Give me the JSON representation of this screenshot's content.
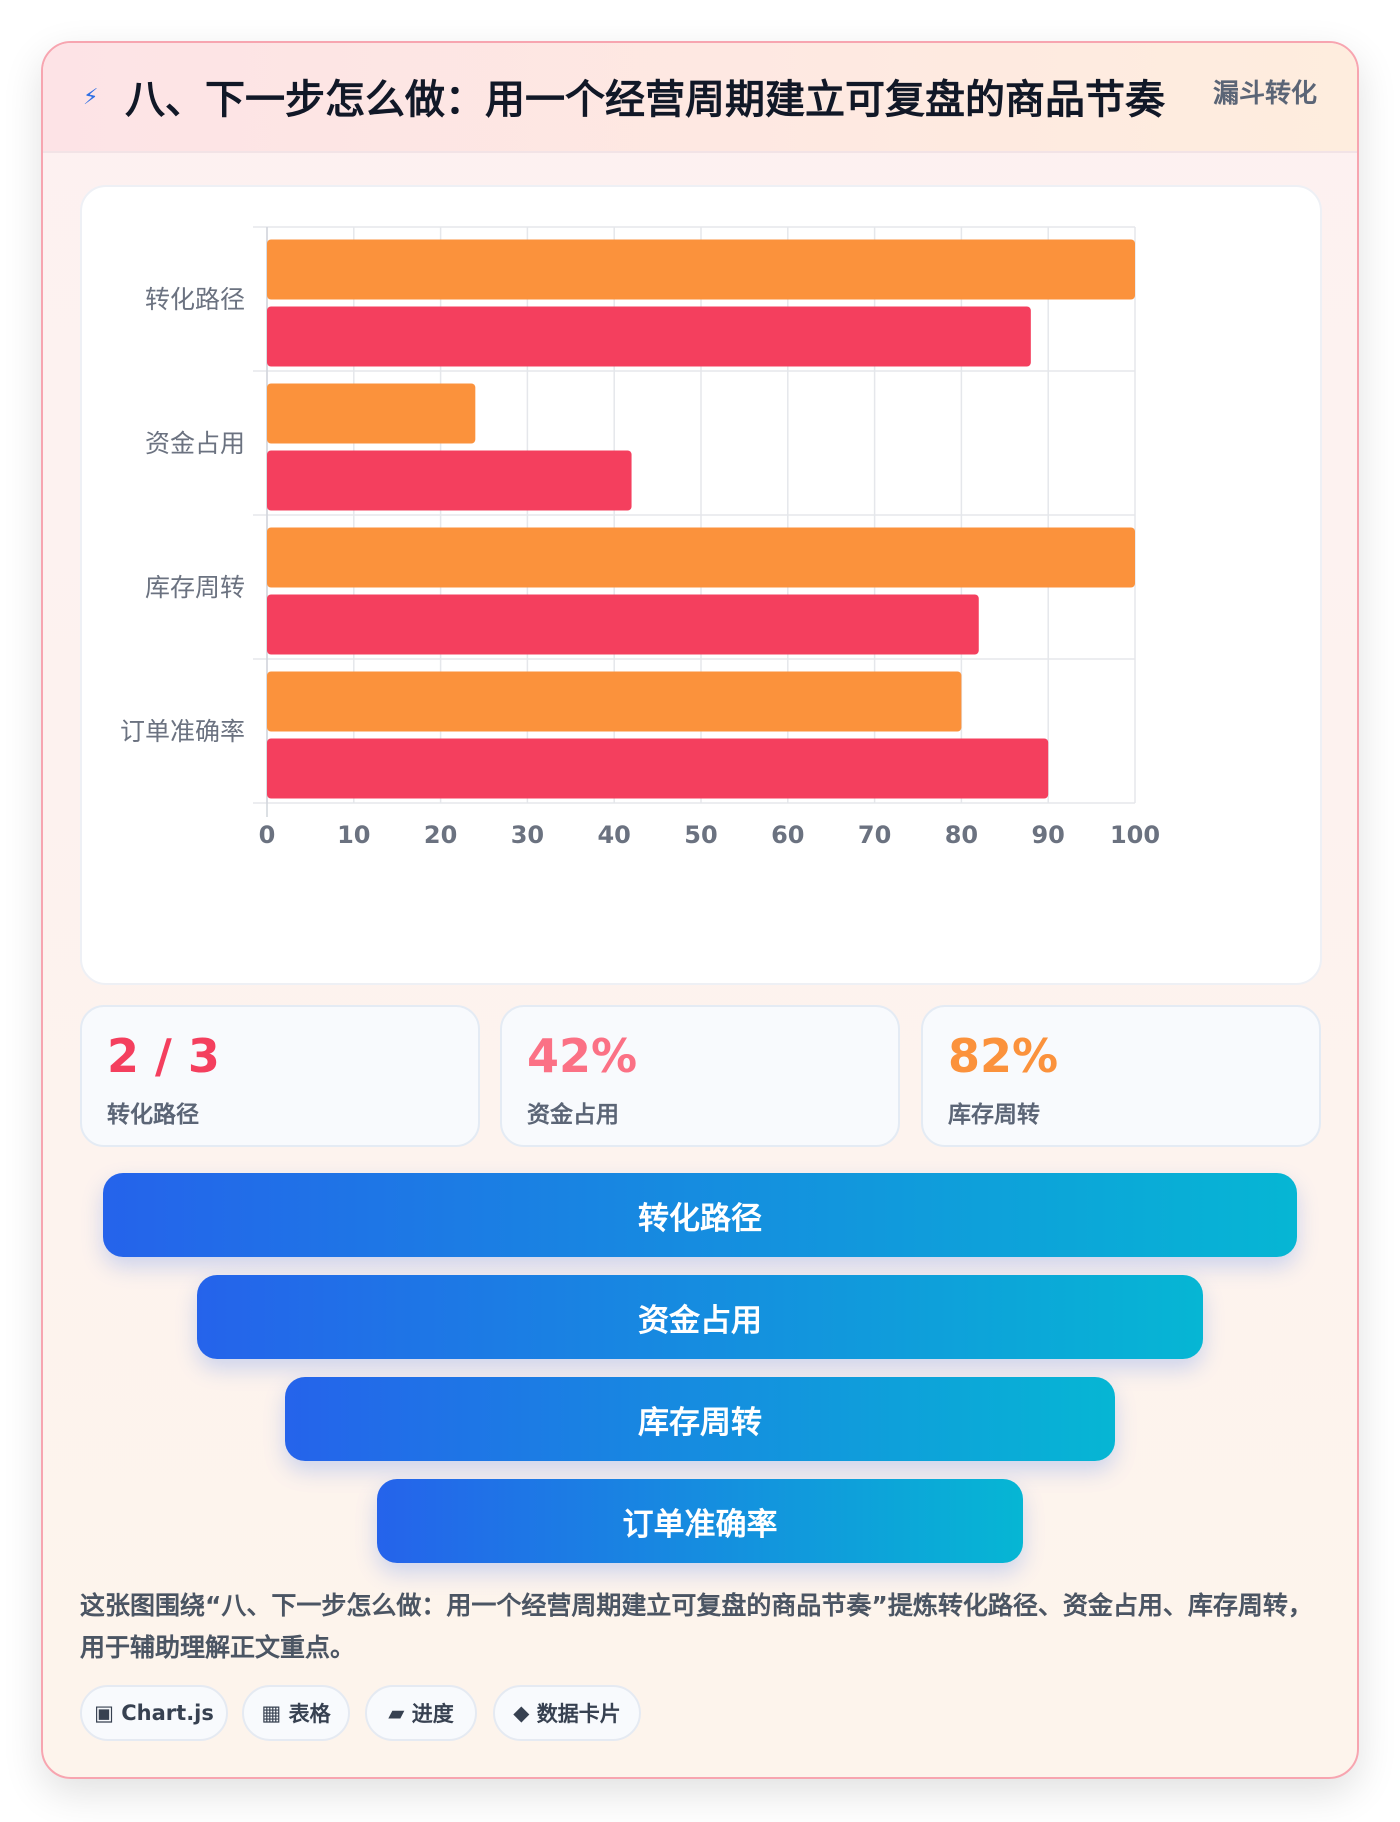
{
  "header": {
    "icon": "lightning-icon",
    "title": "八、下一步怎么做：用一个经营周期建立可复盘的商品节奏",
    "tag": "漏斗转化"
  },
  "chart_data": {
    "type": "bar",
    "orientation": "horizontal",
    "categories": [
      "转化路径",
      "资金占用",
      "库存周转",
      "订单准确率"
    ],
    "series": [
      {
        "values": [
          100,
          24,
          100,
          80
        ],
        "color": "#fb923c"
      },
      {
        "values": [
          88,
          42,
          82,
          90
        ],
        "color": "#f43f5e"
      }
    ],
    "xlim": [
      0,
      100
    ],
    "x_ticks": [
      0,
      10,
      20,
      30,
      40,
      50,
      60,
      70,
      80,
      90,
      100
    ],
    "grid": true,
    "legend": "none"
  },
  "stats": [
    {
      "value": "2 / 3",
      "label": "转化路径",
      "color": "#f43f5e"
    },
    {
      "value": "42%",
      "label": "资金占用",
      "color": "#fb7185"
    },
    {
      "value": "82%",
      "label": "库存周转",
      "color": "#fb923c"
    }
  ],
  "funnel": [
    {
      "label": "转化路径"
    },
    {
      "label": "资金占用"
    },
    {
      "label": "库存周转"
    },
    {
      "label": "订单准确率"
    }
  ],
  "caption": "这张图围绕“八、下一步怎么做：用一个经营周期建立可复盘的商品节奏”提炼转化路径、资金占用、库存周转，用于辅助理解正文重点。",
  "chips": [
    {
      "icon": "▣",
      "label": "Chart.js"
    },
    {
      "icon": "▦",
      "label": "表格"
    },
    {
      "icon": "▰",
      "label": "进度"
    },
    {
      "icon": "◆",
      "label": "数据卡片"
    }
  ]
}
